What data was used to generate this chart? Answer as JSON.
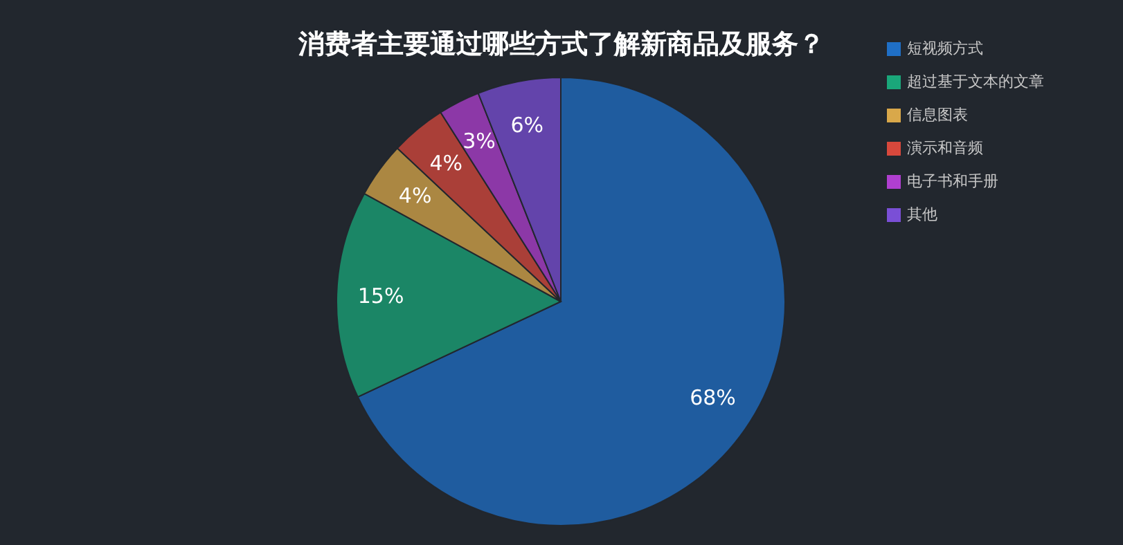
{
  "chart_data": {
    "type": "pie",
    "title": "消费者主要通过哪些方式了解新商品及服务？",
    "categories": [
      "短视频方式",
      "超过基于文本的文章",
      "信息图表",
      "演示和音频",
      "电子书和手册",
      "其他"
    ],
    "values": [
      68,
      15,
      4,
      4,
      3,
      6
    ],
    "value_labels": [
      "68%",
      "15%",
      "4%",
      "4%",
      "3%",
      "6%"
    ],
    "colors": [
      "#1f6fc6",
      "#1aa77a",
      "#d9a84a",
      "#d8483c",
      "#b03fd0",
      "#7a4fd6"
    ],
    "legend": "top right"
  }
}
